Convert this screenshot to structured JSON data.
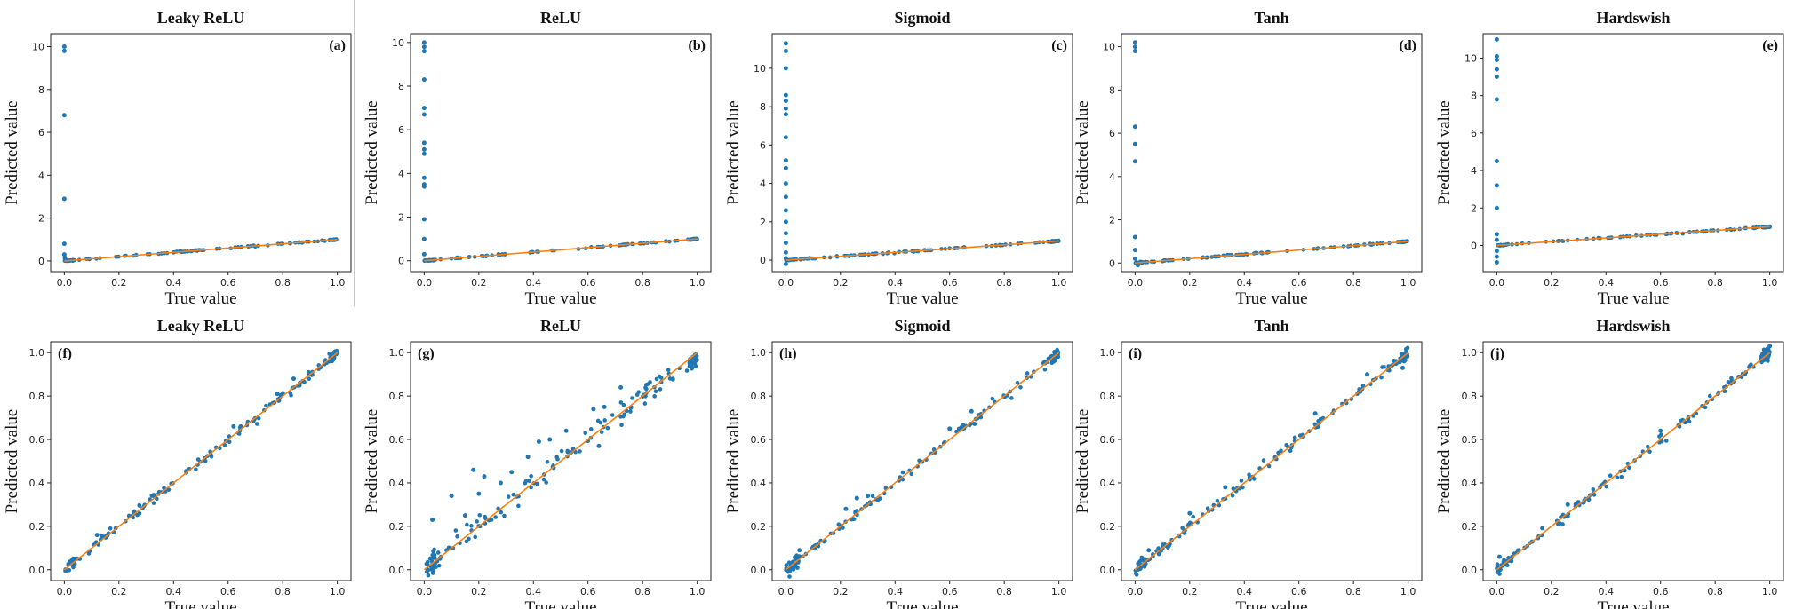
{
  "colors": {
    "points": "#1f77b4",
    "line": "#ff7f0e",
    "frame": "#222222"
  },
  "chart_data": [
    {
      "type": "scatter",
      "panel": "(a)",
      "title": "Leaky ReLU",
      "xlabel": "True value",
      "ylabel": "Predicted value",
      "xlim": [
        -0.05,
        1.05
      ],
      "ylim": [
        -0.5,
        10.6
      ],
      "xticks": [
        "0.0",
        "0.2",
        "0.4",
        "0.6",
        "0.8",
        "1.0"
      ],
      "yticks": [
        "0",
        "2",
        "4",
        "6",
        "8",
        "10"
      ],
      "ytick_values": [
        0,
        2,
        4,
        6,
        8,
        10
      ],
      "fit_line": [
        [
          0,
          0
        ],
        [
          1,
          1
        ]
      ],
      "outliers": [
        [
          0,
          10.0
        ],
        [
          0,
          9.8
        ],
        [
          0,
          6.8
        ],
        [
          0,
          2.9
        ],
        [
          0,
          0.8
        ],
        [
          0,
          0.3
        ],
        [
          0.002,
          0.15
        ]
      ]
    },
    {
      "type": "scatter",
      "panel": "(b)",
      "title": "ReLU",
      "xlabel": "True value",
      "ylabel": "Predicted value",
      "xlim": [
        -0.05,
        1.05
      ],
      "ylim": [
        -0.5,
        10.4
      ],
      "xticks": [
        "0.0",
        "0.2",
        "0.4",
        "0.6",
        "0.8",
        "1.0"
      ],
      "yticks": [
        "0",
        "2",
        "4",
        "6",
        "8",
        "10"
      ],
      "ytick_values": [
        0,
        2,
        4,
        6,
        8,
        10
      ],
      "fit_line": [
        [
          0,
          0
        ],
        [
          1,
          1
        ]
      ],
      "outliers": [
        [
          0,
          10.0
        ],
        [
          0,
          9.8
        ],
        [
          0,
          9.6
        ],
        [
          0,
          8.3
        ],
        [
          0,
          7.0
        ],
        [
          0,
          6.7
        ],
        [
          0,
          5.4
        ],
        [
          0,
          5.1
        ],
        [
          0,
          4.9
        ],
        [
          0,
          3.8
        ],
        [
          0,
          3.5
        ],
        [
          0,
          3.4
        ],
        [
          0,
          1.9
        ],
        [
          0,
          1.0
        ],
        [
          0,
          0.3
        ]
      ]
    },
    {
      "type": "scatter",
      "panel": "(c)",
      "title": "Sigmoid",
      "xlabel": "True value",
      "ylabel": "Predicted value",
      "xlim": [
        -0.05,
        1.05
      ],
      "ylim": [
        -0.6,
        11.8
      ],
      "xticks": [
        "0.0",
        "0.2",
        "0.4",
        "0.6",
        "0.8",
        "1.0"
      ],
      "yticks": [
        "0",
        "2",
        "4",
        "6",
        "8",
        "10"
      ],
      "ytick_values": [
        0,
        2,
        4,
        6,
        8,
        10
      ],
      "fit_line": [
        [
          0,
          0
        ],
        [
          1,
          1
        ]
      ],
      "outliers": [
        [
          0,
          11.3
        ],
        [
          0,
          10.9
        ],
        [
          0,
          10.0
        ],
        [
          0,
          8.6
        ],
        [
          0,
          8.3
        ],
        [
          0,
          7.9
        ],
        [
          0,
          7.6
        ],
        [
          0,
          6.4
        ],
        [
          0,
          5.2
        ],
        [
          0,
          4.8
        ],
        [
          0,
          4.0
        ],
        [
          0,
          3.3
        ],
        [
          0,
          2.6
        ],
        [
          0,
          2.0
        ],
        [
          0,
          1.4
        ],
        [
          0,
          0.9
        ],
        [
          0,
          0.4
        ],
        [
          0,
          0.1
        ],
        [
          0,
          -0.2
        ]
      ]
    },
    {
      "type": "scatter",
      "panel": "(d)",
      "title": "Tanh",
      "xlabel": "True value",
      "ylabel": "Predicted value",
      "xlim": [
        -0.05,
        1.05
      ],
      "ylim": [
        -0.4,
        10.6
      ],
      "xticks": [
        "0.0",
        "0.2",
        "0.4",
        "0.6",
        "0.8",
        "1.0"
      ],
      "yticks": [
        "0",
        "2",
        "4",
        "6",
        "8",
        "10"
      ],
      "ytick_values": [
        0,
        2,
        4,
        6,
        8,
        10
      ],
      "fit_line": [
        [
          0,
          0
        ],
        [
          1,
          1
        ]
      ],
      "outliers": [
        [
          0,
          10.2
        ],
        [
          0,
          10.0
        ],
        [
          0,
          9.8
        ],
        [
          0,
          6.3
        ],
        [
          0,
          5.5
        ],
        [
          0,
          4.7
        ],
        [
          0,
          1.2
        ],
        [
          0,
          0.6
        ],
        [
          0,
          0.2
        ],
        [
          0.01,
          -0.1
        ],
        [
          0.02,
          0.05
        ]
      ]
    },
    {
      "type": "scatter",
      "panel": "(e)",
      "title": "Hardswish",
      "xlabel": "True value",
      "ylabel": "Predicted value",
      "xlim": [
        -0.05,
        1.05
      ],
      "ylim": [
        -1.4,
        11.3
      ],
      "xticks": [
        "0.0",
        "0.2",
        "0.4",
        "0.6",
        "0.8",
        "1.0"
      ],
      "yticks": [
        "0",
        "2",
        "4",
        "6",
        "8",
        "10"
      ],
      "ytick_values": [
        0,
        2,
        4,
        6,
        8,
        10
      ],
      "fit_line": [
        [
          0,
          0
        ],
        [
          1,
          1
        ]
      ],
      "outliers": [
        [
          0,
          11.0
        ],
        [
          0,
          10.1
        ],
        [
          0,
          9.9
        ],
        [
          0,
          9.4
        ],
        [
          0,
          9.0
        ],
        [
          0,
          7.8
        ],
        [
          0,
          4.5
        ],
        [
          0,
          3.2
        ],
        [
          0,
          2.0
        ],
        [
          0,
          0.6
        ],
        [
          0,
          0.3
        ],
        [
          0,
          -0.3
        ],
        [
          0,
          -0.6
        ],
        [
          0,
          -0.9
        ]
      ]
    },
    {
      "type": "scatter",
      "panel": "(f)",
      "title": "Leaky ReLU",
      "xlabel": "True value",
      "ylabel": "Predicted value",
      "xlim": [
        -0.05,
        1.05
      ],
      "ylim": [
        -0.05,
        1.05
      ],
      "xticks": [
        "0.0",
        "0.2",
        "0.4",
        "0.6",
        "0.8",
        "1.0"
      ],
      "yticks": [
        "0.0",
        "0.2",
        "0.4",
        "0.6",
        "0.8",
        "1.0"
      ],
      "ytick_values": [
        0,
        0.2,
        0.4,
        0.6,
        0.8,
        1.0
      ],
      "fit_line": [
        [
          0,
          0
        ],
        [
          1,
          1
        ]
      ],
      "outliers": [
        [
          0.62,
          0.66
        ],
        [
          0.78,
          0.81
        ],
        [
          0.84,
          0.88
        ],
        [
          0.12,
          0.16
        ]
      ]
    },
    {
      "type": "scatter",
      "panel": "(g)",
      "title": "ReLU",
      "xlabel": "True value",
      "ylabel": "Predicted value",
      "xlim": [
        -0.05,
        1.05
      ],
      "ylim": [
        -0.05,
        1.05
      ],
      "xticks": [
        "0.0",
        "0.2",
        "0.4",
        "0.6",
        "0.8",
        "1.0"
      ],
      "yticks": [
        "0.0",
        "0.2",
        "0.4",
        "0.6",
        "0.8",
        "1.0"
      ],
      "ytick_values": [
        0,
        0.2,
        0.4,
        0.6,
        0.8,
        1.0
      ],
      "fit_line": [
        [
          0,
          0
        ],
        [
          1,
          1
        ]
      ],
      "outliers": [
        [
          0.03,
          0.23
        ],
        [
          0.1,
          0.34
        ],
        [
          0.18,
          0.46
        ],
        [
          0.22,
          0.43
        ],
        [
          0.2,
          0.35
        ],
        [
          0.32,
          0.45
        ],
        [
          0.42,
          0.59
        ],
        [
          0.46,
          0.6
        ],
        [
          0.52,
          0.64
        ],
        [
          0.62,
          0.74
        ],
        [
          0.66,
          0.75
        ],
        [
          0.72,
          0.84
        ],
        [
          0.15,
          0.25
        ],
        [
          0.28,
          0.4
        ],
        [
          0.38,
          0.52
        ],
        [
          0.64,
          0.57
        ]
      ]
    },
    {
      "type": "scatter",
      "panel": "(h)",
      "title": "Sigmoid",
      "xlabel": "True value",
      "ylabel": "Predicted value",
      "xlim": [
        -0.05,
        1.05
      ],
      "ylim": [
        -0.05,
        1.05
      ],
      "xticks": [
        "0.0",
        "0.2",
        "0.4",
        "0.6",
        "0.8",
        "1.0"
      ],
      "yticks": [
        "0.0",
        "0.2",
        "0.4",
        "0.6",
        "0.8",
        "1.0"
      ],
      "ytick_values": [
        0,
        0.2,
        0.4,
        0.6,
        0.8,
        1.0
      ],
      "fit_line": [
        [
          0,
          0
        ],
        [
          1,
          1
        ]
      ],
      "outliers": [
        [
          0.22,
          0.28
        ],
        [
          0.26,
          0.33
        ],
        [
          0.3,
          0.34
        ],
        [
          0.68,
          0.73
        ],
        [
          0.6,
          0.65
        ],
        [
          0.05,
          0.09
        ]
      ]
    },
    {
      "type": "scatter",
      "panel": "(i)",
      "title": "Tanh",
      "xlabel": "True value",
      "ylabel": "Predicted value",
      "xlim": [
        -0.05,
        1.05
      ],
      "ylim": [
        -0.05,
        1.05
      ],
      "xticks": [
        "0.0",
        "0.2",
        "0.4",
        "0.6",
        "0.8",
        "1.0"
      ],
      "yticks": [
        "0.0",
        "0.2",
        "0.4",
        "0.6",
        "0.8",
        "1.0"
      ],
      "ytick_values": [
        0,
        0.2,
        0.4,
        0.6,
        0.8,
        1.0
      ],
      "fit_line": [
        [
          0,
          0
        ],
        [
          1,
          1
        ]
      ],
      "outliers": [
        [
          0.05,
          0.09
        ],
        [
          0.2,
          0.26
        ],
        [
          0.33,
          0.38
        ],
        [
          0.66,
          0.72
        ],
        [
          0.85,
          0.9
        ],
        [
          0.98,
          0.93
        ]
      ]
    },
    {
      "type": "scatter",
      "panel": "(j)",
      "title": "Hardswish",
      "xlabel": "True value",
      "ylabel": "Predicted value",
      "xlim": [
        -0.05,
        1.05
      ],
      "ylim": [
        -0.05,
        1.05
      ],
      "xticks": [
        "0.0",
        "0.2",
        "0.4",
        "0.6",
        "0.8",
        "1.0"
      ],
      "yticks": [
        "0.0",
        "0.2",
        "0.4",
        "0.6",
        "0.8",
        "1.0"
      ],
      "ytick_values": [
        0,
        0.2,
        0.4,
        0.6,
        0.8,
        1.0
      ],
      "fit_line": [
        [
          0,
          0
        ],
        [
          1,
          1
        ]
      ],
      "outliers": [
        [
          0.01,
          0.06
        ],
        [
          0.26,
          0.3
        ],
        [
          0.6,
          0.64
        ],
        [
          1.0,
          1.03
        ]
      ]
    }
  ]
}
